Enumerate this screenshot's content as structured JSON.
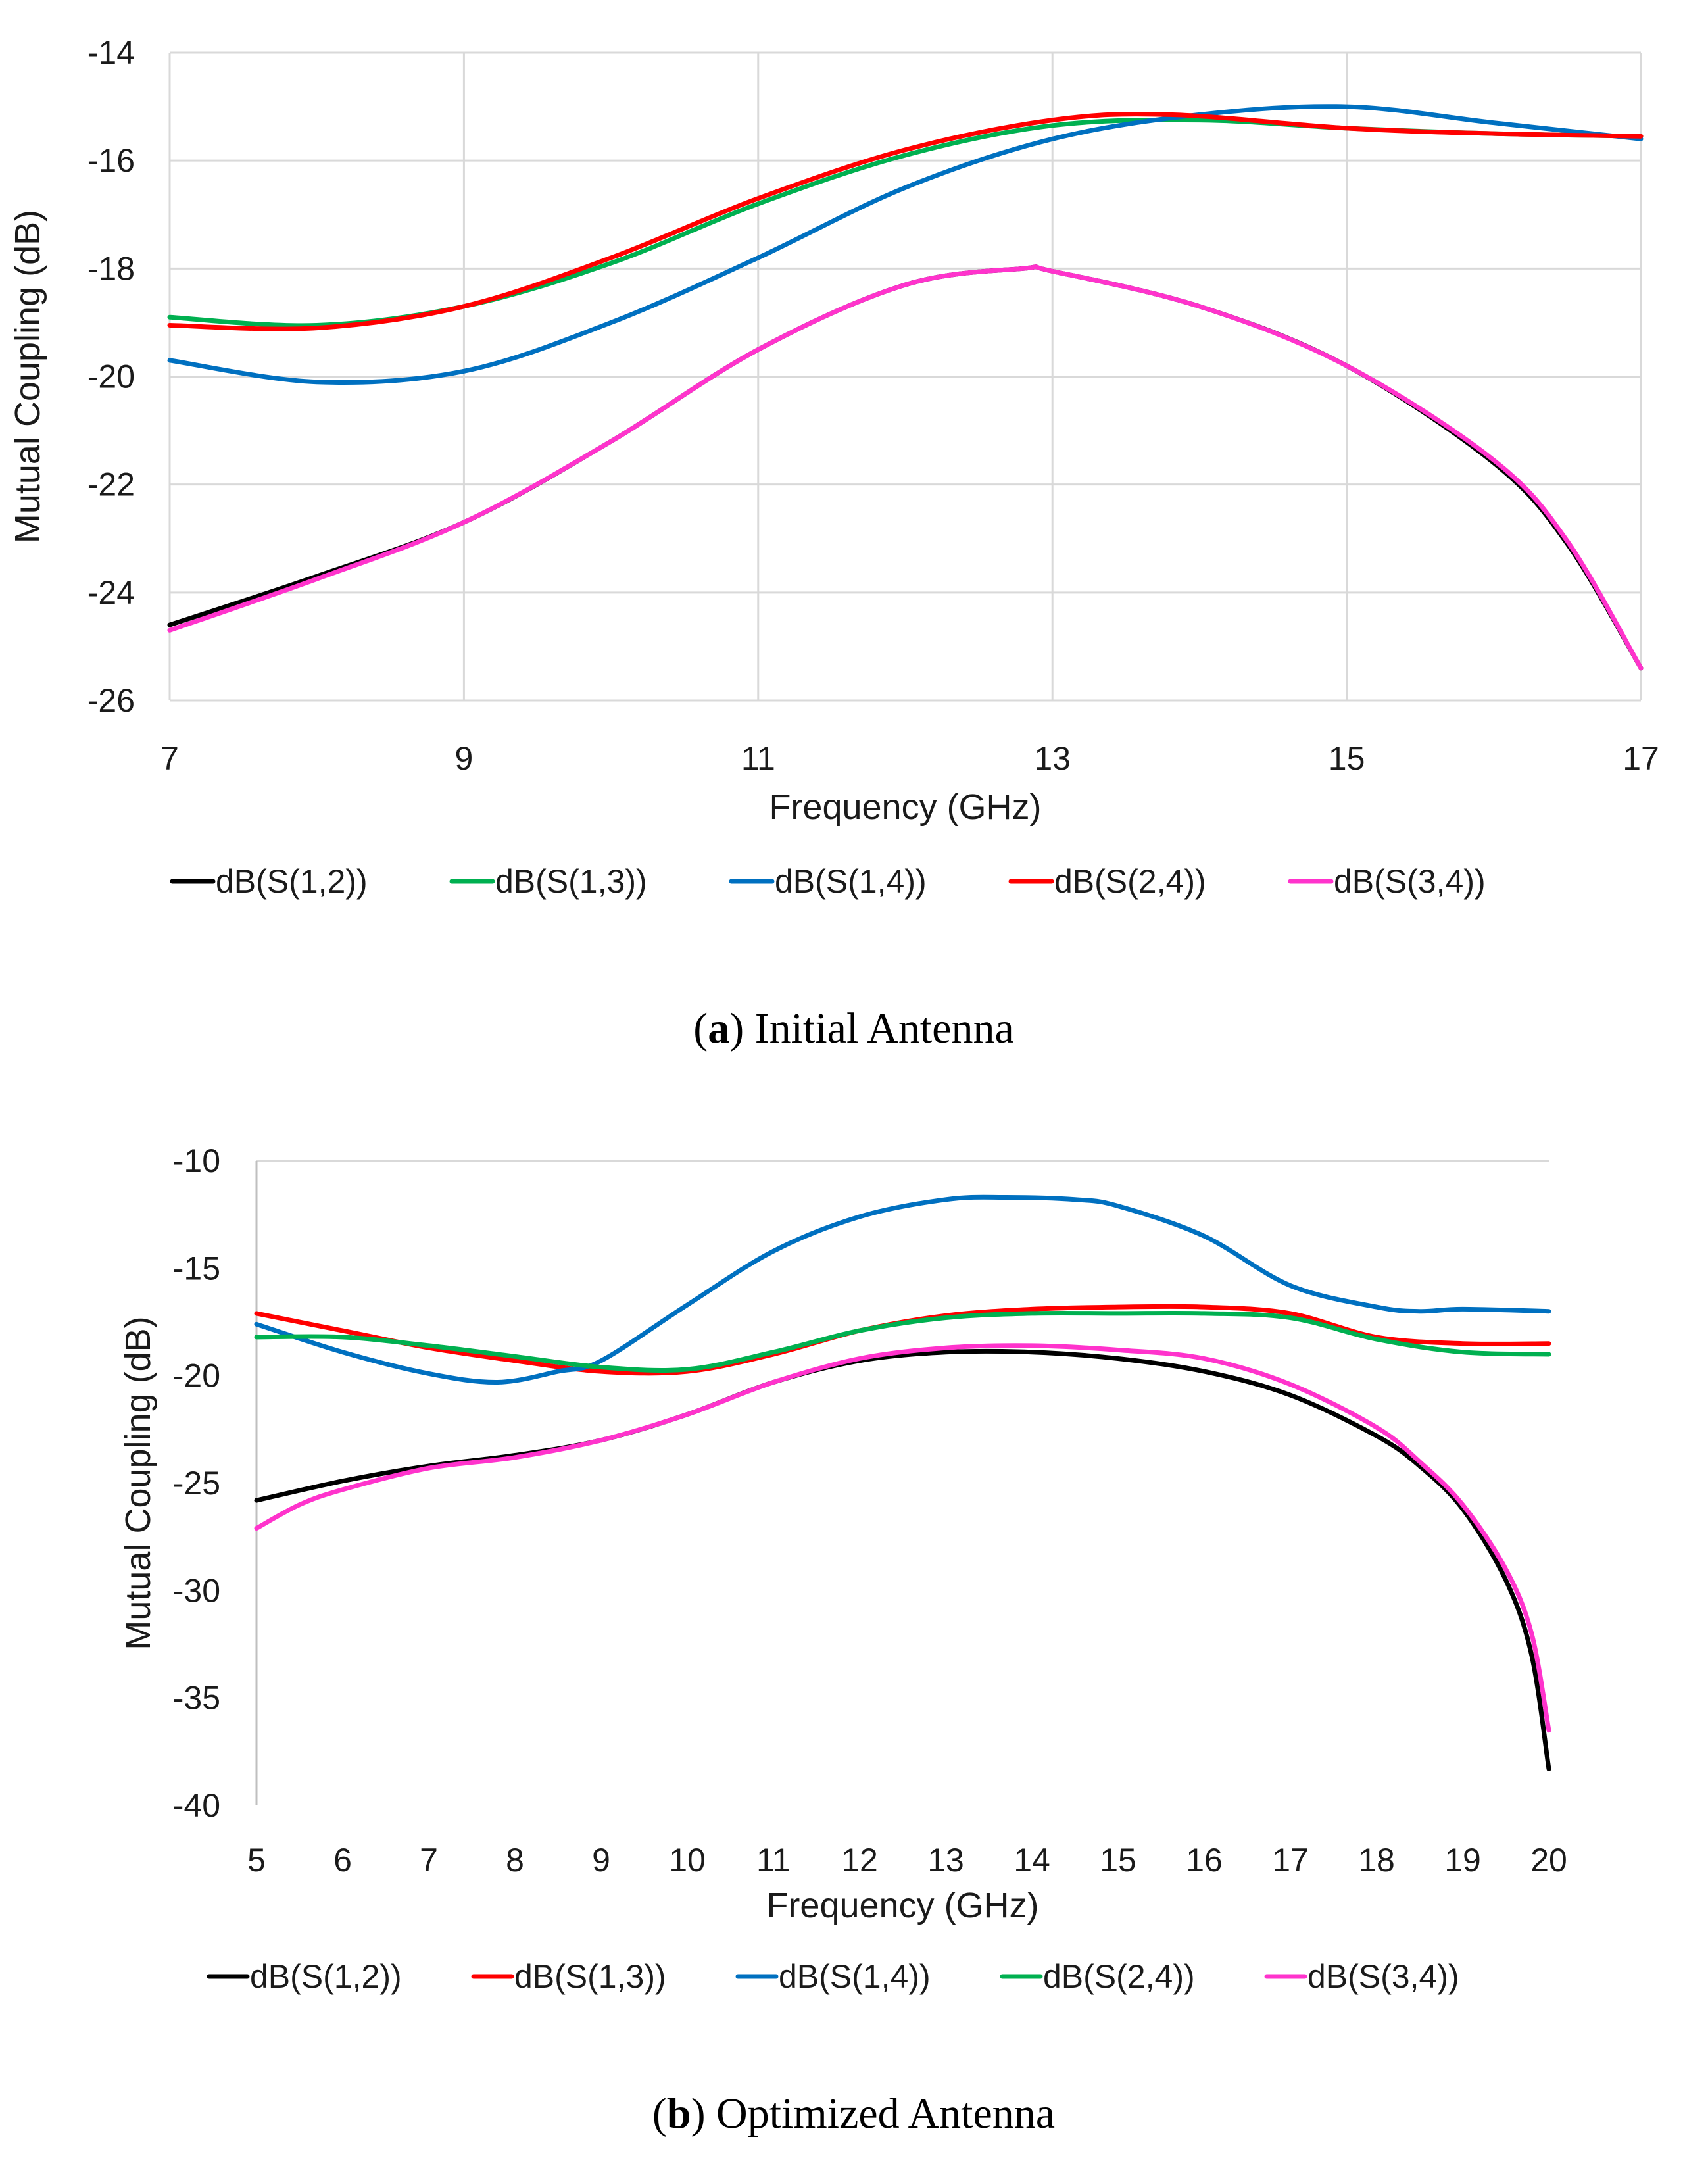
{
  "chart_data": [
    {
      "type": "line",
      "xlabel": "Frequency (GHz)",
      "ylabel": "Mutual Coupling (dB)",
      "xlim": [
        7,
        17
      ],
      "ylim": [
        -26,
        -14
      ],
      "xticks": [
        7,
        9,
        11,
        13,
        15,
        17
      ],
      "yticks": [
        -14,
        -16,
        -18,
        -20,
        -22,
        -24,
        -26
      ],
      "grid": true,
      "legend_position": "bottom",
      "caption_letter": "a",
      "caption_text": "Initial Antenna",
      "series": [
        {
          "name": "dB(S(1,2))",
          "color": "#000000",
          "x": [
            7,
            8,
            9,
            10,
            11,
            12,
            12.8,
            13,
            14,
            15,
            16,
            16.5,
            17
          ],
          "y": [
            -24.6,
            -23.7,
            -22.7,
            -21.2,
            -19.5,
            -18.3,
            -18.0,
            -18.05,
            -18.7,
            -19.8,
            -21.6,
            -23.1,
            -25.4
          ]
        },
        {
          "name": "dB(S(1,3))",
          "color": "#00b050",
          "x": [
            7,
            8,
            9,
            10,
            11,
            12,
            13,
            14,
            15,
            16,
            17
          ],
          "y": [
            -18.9,
            -19.05,
            -18.7,
            -17.9,
            -16.8,
            -15.9,
            -15.35,
            -15.25,
            -15.4,
            -15.5,
            -15.55
          ]
        },
        {
          "name": "dB(S(1,4))",
          "color": "#0070c0",
          "x": [
            7,
            8,
            9,
            10,
            11,
            12,
            13,
            14,
            15,
            16,
            17
          ],
          "y": [
            -19.7,
            -20.1,
            -19.9,
            -19.0,
            -17.8,
            -16.5,
            -15.6,
            -15.15,
            -15.0,
            -15.3,
            -15.6
          ]
        },
        {
          "name": "dB(S(2,4))",
          "color": "#ff0000",
          "x": [
            7,
            8,
            9,
            10,
            11,
            12,
            13,
            13.8,
            15,
            16,
            17
          ],
          "y": [
            -19.05,
            -19.1,
            -18.7,
            -17.8,
            -16.7,
            -15.8,
            -15.25,
            -15.15,
            -15.4,
            -15.5,
            -15.55
          ]
        },
        {
          "name": "dB(S(3,4))",
          "color": "#ff33cc",
          "x": [
            7,
            8,
            9,
            10,
            11,
            12,
            12.8,
            13,
            14,
            15,
            16,
            16.5,
            17
          ],
          "y": [
            -24.7,
            -23.75,
            -22.7,
            -21.2,
            -19.5,
            -18.3,
            -18.0,
            -18.05,
            -18.7,
            -19.8,
            -21.55,
            -23.05,
            -25.4
          ]
        }
      ]
    },
    {
      "type": "line",
      "xlabel": "Frequency (GHz)",
      "ylabel": "Mutual Coupling (dB)",
      "xlim": [
        5,
        20
      ],
      "ylim": [
        -40,
        -10
      ],
      "xticks": [
        5,
        6,
        7,
        8,
        9,
        10,
        11,
        12,
        13,
        14,
        15,
        16,
        17,
        18,
        19,
        20
      ],
      "yticks": [
        -10,
        -15,
        -20,
        -25,
        -30,
        -35,
        -40
      ],
      "grid": false,
      "legend_position": "bottom",
      "caption_letter": "b",
      "caption_text": "Optimized Antenna",
      "series": [
        {
          "name": "dB(S(1,2))",
          "color": "#000000",
          "x": [
            5,
            6,
            7,
            8,
            9,
            10,
            11,
            12,
            13,
            14,
            15,
            16,
            17,
            18,
            18.5,
            19,
            19.5,
            19.8,
            20
          ],
          "y": [
            -25.8,
            -24.9,
            -24.2,
            -23.7,
            -23.0,
            -21.8,
            -20.3,
            -19.3,
            -18.9,
            -18.9,
            -19.2,
            -19.8,
            -20.9,
            -22.8,
            -24.2,
            -26.2,
            -29.5,
            -33.0,
            -38.3
          ]
        },
        {
          "name": "dB(S(1,3))",
          "color": "#ff0000",
          "x": [
            5,
            6,
            7,
            8,
            9,
            10,
            11,
            12,
            13,
            14,
            15,
            16,
            17,
            18,
            19,
            20
          ],
          "y": [
            -17.1,
            -17.9,
            -18.7,
            -19.3,
            -19.8,
            -19.8,
            -19.0,
            -17.9,
            -17.2,
            -16.9,
            -16.8,
            -16.8,
            -17.1,
            -18.2,
            -18.5,
            -18.5
          ]
        },
        {
          "name": "dB(S(1,4))",
          "color": "#0070c0",
          "x": [
            5,
            6,
            7,
            7.8,
            8.5,
            9,
            10,
            11,
            12,
            13,
            13.7,
            14.5,
            15,
            16,
            17,
            18,
            18.5,
            19,
            20
          ],
          "y": [
            -17.6,
            -18.9,
            -19.9,
            -20.3,
            -19.8,
            -19.3,
            -16.7,
            -14.2,
            -12.6,
            -11.8,
            -11.7,
            -11.8,
            -12.1,
            -13.5,
            -15.8,
            -16.8,
            -17.0,
            -16.9,
            -17.0
          ]
        },
        {
          "name": "dB(S(2,4))",
          "color": "#00b050",
          "x": [
            5,
            6,
            7,
            8,
            9,
            10,
            11,
            12,
            13,
            14,
            15,
            16,
            17,
            18,
            19,
            20
          ],
          "y": [
            -18.2,
            -18.2,
            -18.6,
            -19.1,
            -19.6,
            -19.7,
            -18.9,
            -17.9,
            -17.3,
            -17.1,
            -17.1,
            -17.1,
            -17.3,
            -18.3,
            -18.9,
            -19.0
          ]
        },
        {
          "name": "dB(S(3,4))",
          "color": "#ff33cc",
          "x": [
            5,
            5.5,
            6,
            7,
            8,
            9,
            10,
            11,
            12,
            13,
            14,
            15,
            16,
            17,
            18,
            18.5,
            19,
            19.5,
            19.8,
            20
          ],
          "y": [
            -27.1,
            -26.0,
            -25.3,
            -24.3,
            -23.8,
            -23.0,
            -21.8,
            -20.3,
            -19.2,
            -18.7,
            -18.6,
            -18.8,
            -19.2,
            -20.4,
            -22.4,
            -24.0,
            -26.0,
            -29.0,
            -32.0,
            -36.5
          ]
        }
      ]
    }
  ]
}
